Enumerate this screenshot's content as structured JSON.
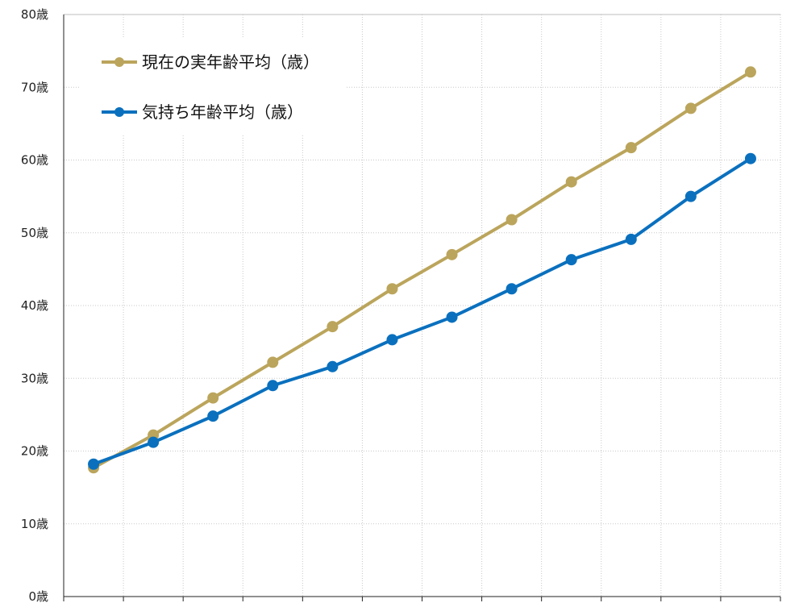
{
  "chart_data": {
    "type": "line",
    "title": "",
    "xlabel": "",
    "ylabel": "",
    "ylim": [
      0,
      80
    ],
    "y_ticks": [
      "0歳",
      "10歳",
      "20歳",
      "30歳",
      "40歳",
      "50歳",
      "60歳",
      "70歳",
      "80歳"
    ],
    "grid": true,
    "legend_position": "top-left",
    "x_count": 12,
    "series": [
      {
        "name": "現在の実年齢平均（歳）",
        "color": "#BBA55C",
        "values": [
          17.7,
          22.2,
          27.3,
          32.2,
          37.1,
          42.3,
          47.0,
          51.8,
          57.0,
          61.7,
          67.1,
          72.1
        ]
      },
      {
        "name": "気持ち年齢平均（歳）",
        "color": "#0A70BE",
        "values": [
          18.2,
          21.2,
          24.8,
          29.0,
          31.6,
          35.3,
          38.4,
          42.3,
          46.3,
          49.1,
          55.0,
          60.2
        ]
      }
    ]
  }
}
